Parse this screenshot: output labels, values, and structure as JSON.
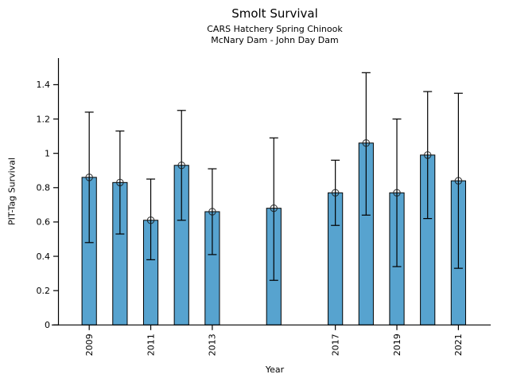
{
  "figure": {
    "title": "Smolt Survival",
    "subtitle_line1": "CARS Hatchery Spring Chinook",
    "subtitle_line2": "McNary Dam - John Day Dam"
  },
  "chart_data": {
    "type": "bar",
    "title": "Smolt Survival",
    "subtitle1": "CARS Hatchery Spring Chinook",
    "subtitle2": "McNary Dam - John Day Dam",
    "xlabel": "Year",
    "ylabel": "PIT-Tag Survival",
    "x": [
      2009,
      2010,
      2011,
      2012,
      2013,
      2015,
      2017,
      2018,
      2019,
      2020,
      2021
    ],
    "values": [
      0.86,
      0.83,
      0.61,
      0.93,
      0.66,
      0.68,
      0.77,
      1.06,
      0.77,
      0.99,
      0.84
    ],
    "error_low": [
      0.48,
      0.53,
      0.38,
      0.61,
      0.41,
      0.26,
      0.58,
      0.64,
      0.34,
      0.62,
      0.33
    ],
    "error_high": [
      1.24,
      1.13,
      0.85,
      1.25,
      0.91,
      1.09,
      0.96,
      1.47,
      1.2,
      1.36,
      1.35
    ],
    "missing_years": [
      2014,
      2016
    ],
    "x_ticks": [
      2009,
      2011,
      2013,
      2017,
      2019,
      2021
    ],
    "x_tick_labels": [
      "2009",
      "2011",
      "2013",
      "2017",
      "2019",
      "2021"
    ],
    "y_ticks": [
      0,
      0.2,
      0.4,
      0.6,
      0.8,
      1,
      1.2,
      1.4
    ],
    "y_tick_labels": [
      "0",
      "0.2",
      "0.4",
      "0.6",
      "0.8",
      "1",
      "1.2",
      "1.4"
    ],
    "xlim": [
      2008.0,
      2022.05
    ],
    "ylim": [
      0,
      1.555
    ],
    "bar_width_years": 0.47,
    "bar_color": "#57A3CF",
    "bar_edge_color": "#000000",
    "error_bar_color": "#000000",
    "marker": "open-circle",
    "marker_color": "#1a1a1a",
    "grid": false,
    "legend": null
  }
}
